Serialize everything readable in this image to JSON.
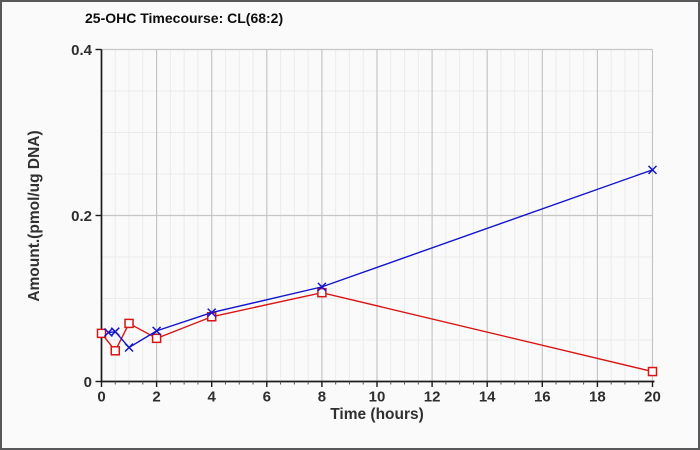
{
  "window": {
    "background_color": "#fafafa",
    "frame_border_color": "#58585a"
  },
  "chart_data": {
    "type": "line",
    "title": "25-OHC Timecourse: CL(68:2)",
    "xlabel": "Time (hours)",
    "ylabel": "Amount.(pmol/ug DNA)",
    "xlim": [
      0,
      20
    ],
    "ylim": [
      0,
      0.4
    ],
    "x_major_ticks": [
      0,
      2,
      4,
      6,
      8,
      10,
      12,
      14,
      16,
      18,
      20
    ],
    "x_tick_labels": [
      "0",
      "2",
      "4",
      "6",
      "8",
      "10",
      "12",
      "14",
      "16",
      "18",
      "20"
    ],
    "y_major_ticks": [
      0,
      0.2,
      0.4
    ],
    "y_tick_labels": [
      "0",
      "0.2",
      "0.4"
    ],
    "x_minor_step": 0.5,
    "y_minor_step": 0.05,
    "grid": "major and minor, on",
    "legend": "none",
    "plot_border": "top and right bounded by major gridlines",
    "grid_major_color": "#c6c6c6",
    "grid_minor_color": "#ececec",
    "axis_color": "#1c1c1c",
    "series": [
      {
        "name": "red-open-squares",
        "color": "#d91414",
        "marker": "open-square",
        "x": [
          0,
          0.5,
          1,
          2,
          4,
          8,
          20
        ],
        "y": [
          0.058,
          0.037,
          0.07,
          0.052,
          0.078,
          0.107,
          0.012
        ]
      },
      {
        "name": "blue-x-crosses",
        "color": "#1414cc",
        "marker": "x-cross",
        "x": [
          0.25,
          0.5,
          1,
          2,
          4,
          8,
          20
        ],
        "y": [
          0.059,
          0.06,
          0.041,
          0.061,
          0.083,
          0.114,
          0.255
        ]
      }
    ]
  }
}
